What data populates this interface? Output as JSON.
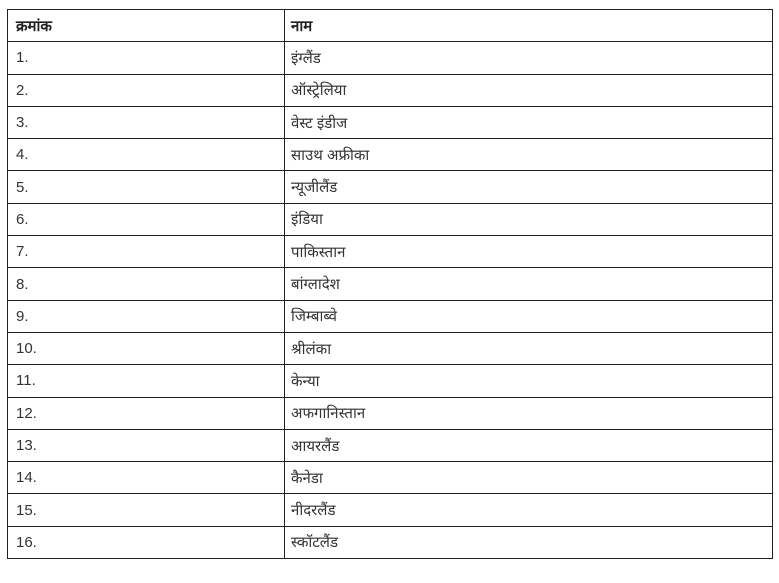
{
  "table": {
    "headers": [
      "क्रमांक",
      "नाम"
    ],
    "rows": [
      [
        "1.",
        "इंग्लैंड"
      ],
      [
        "2.",
        "ऑस्ट्रेलिया"
      ],
      [
        "3.",
        "वेस्ट इंडीज"
      ],
      [
        "4.",
        "साउथ अफ्रीका"
      ],
      [
        "5.",
        "न्यूजीलैंड"
      ],
      [
        "6.",
        "इंडिया"
      ],
      [
        "7.",
        "पाकिस्तान"
      ],
      [
        "8.",
        "बांग्लादेश"
      ],
      [
        "9.",
        "जिम्बाब्वे"
      ],
      [
        "10.",
        "श्रीलंका"
      ],
      [
        "11.",
        "केन्या"
      ],
      [
        "12.",
        "अफगानिस्तान"
      ],
      [
        "13.",
        "आयरलैंड"
      ],
      [
        "14.",
        "कैनेडा"
      ],
      [
        "15.",
        "नीदरलैंड"
      ],
      [
        "16.",
        "स्कॉटलैंड"
      ]
    ]
  }
}
